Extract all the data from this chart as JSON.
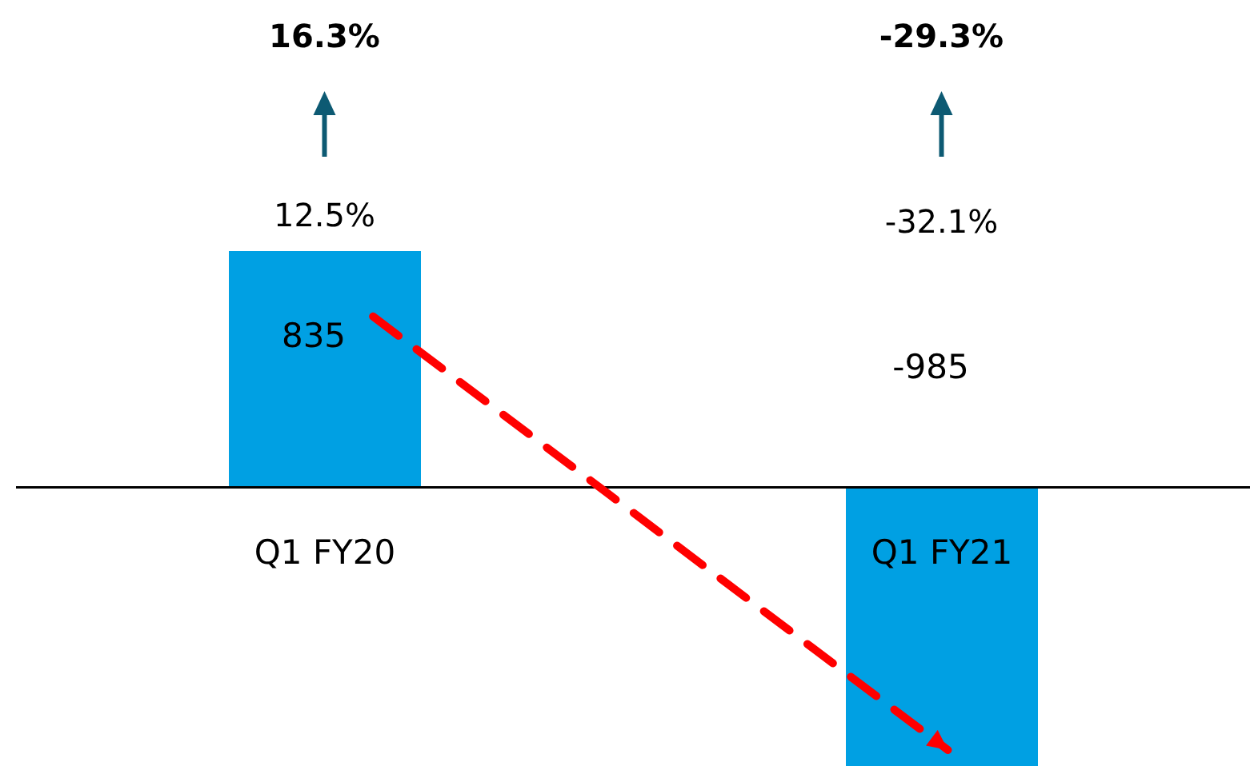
{
  "chart_data": {
    "type": "bar",
    "categories": [
      "Q1 FY20",
      "Q1 FY21"
    ],
    "values": [
      835,
      -985
    ],
    "color": "#00a0e3",
    "data_labels": true,
    "annotations": [
      "16.3%",
      "12.5%",
      "-29.3%",
      "-32.1%"
    ]
  }
}
